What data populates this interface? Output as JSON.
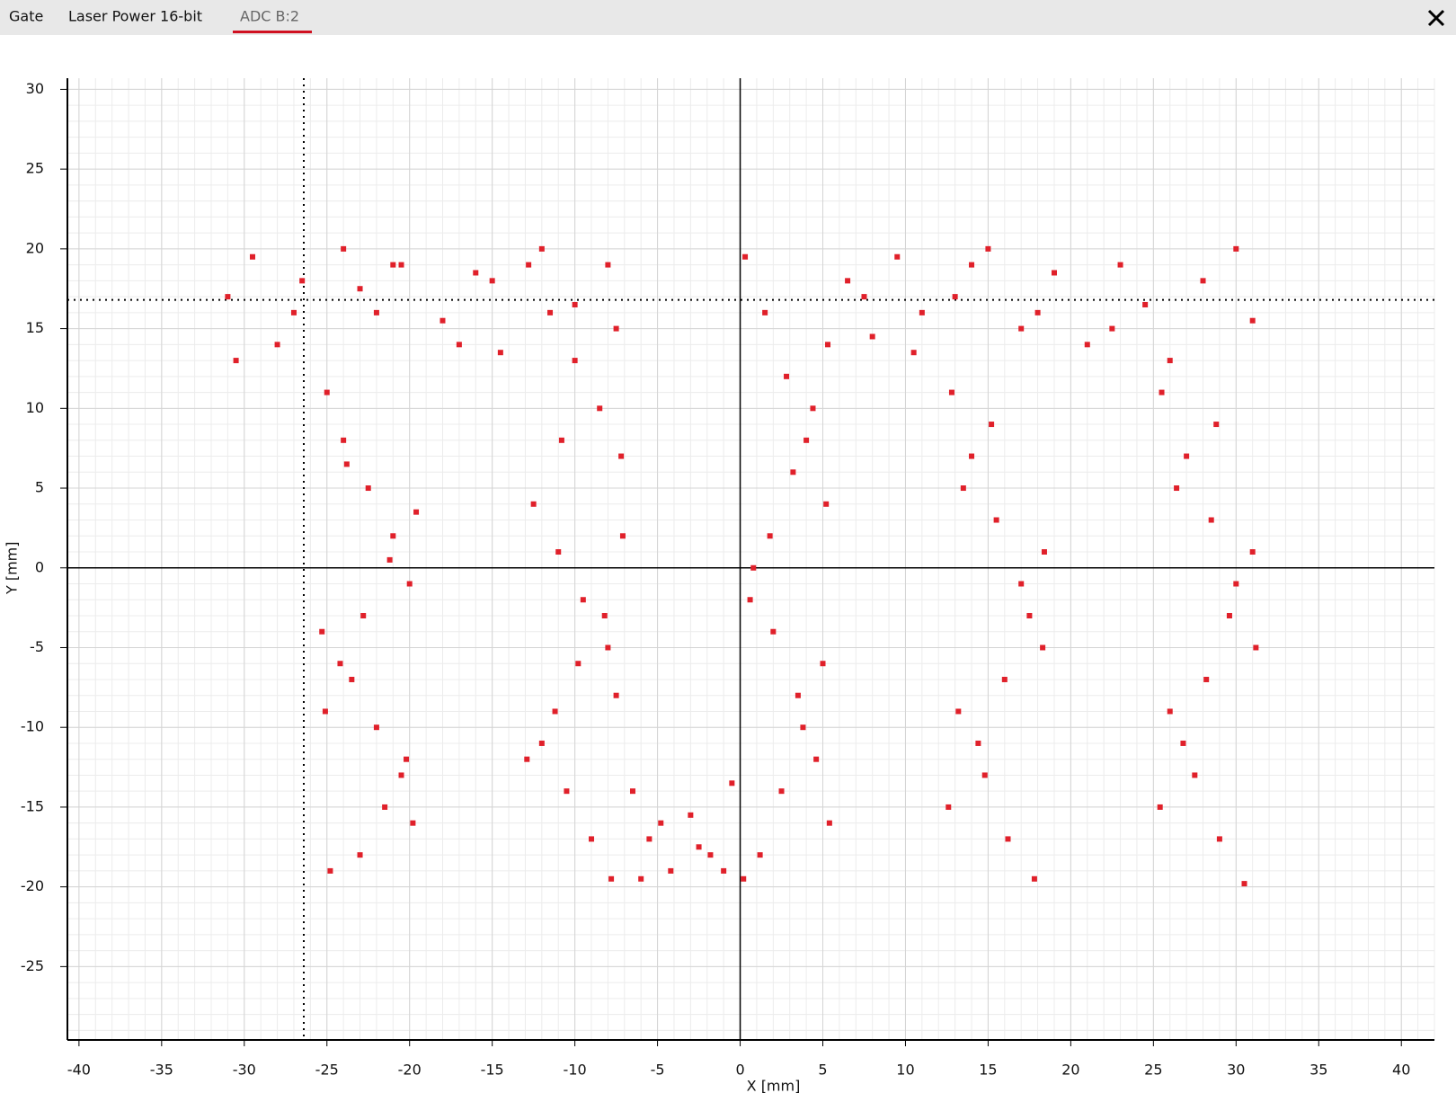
{
  "tabs": [
    "Gate",
    "Laser Power 16-bit",
    "ADC B:2"
  ],
  "active_tab": 2,
  "chart_data": {
    "type": "scatter",
    "xlabel": "X [mm]",
    "ylabel": "Y [mm]",
    "xlim": [
      -40.7,
      42
    ],
    "ylim": [
      -29.6,
      30.7
    ],
    "xticks": [
      -40,
      -35,
      -30,
      -25,
      -20,
      -15,
      -10,
      -5,
      0,
      5,
      10,
      15,
      20,
      25,
      30,
      35,
      40
    ],
    "yticks": [
      -25,
      -20,
      -15,
      -10,
      -5,
      0,
      5,
      10,
      15,
      20,
      25,
      30
    ],
    "grid": true,
    "minor_grid": true,
    "cursor": {
      "x": -26.4,
      "y": 16.8
    },
    "series": [
      {
        "color": "#e0202a",
        "x": [
          -31,
          -29.5,
          -28,
          -26.5,
          -24,
          -22,
          -20.5,
          -18,
          -16,
          -14.5,
          -30.5,
          -27,
          -23,
          -21,
          -17,
          -15,
          -12,
          -10,
          -8,
          -7.5,
          -25,
          -24,
          -22.5,
          -21,
          -20,
          -25.3,
          -23.5,
          -22,
          -20.5,
          -19.8,
          -24.8,
          -23,
          -21.5,
          -20.2,
          -25.1,
          -24.2,
          -22.8,
          -21.2,
          -19.6,
          -23.8,
          -12.8,
          -11.5,
          -10,
          -8.5,
          -7.2,
          -12.5,
          -11,
          -9.5,
          -8,
          -7.5,
          -12,
          -10.5,
          -9,
          -7.8,
          -12.9,
          -11.2,
          -9.8,
          -8.2,
          -7.1,
          -10.8,
          -6.5,
          -5.5,
          -4.2,
          -3,
          -1.8,
          -0.5,
          -6,
          -4.8,
          -2.5,
          -1,
          0.3,
          1.5,
          2.8,
          4,
          5.2,
          0.8,
          2,
          3.5,
          4.6,
          5.4,
          0.2,
          1.2,
          2.5,
          3.8,
          5,
          0.6,
          1.8,
          3.2,
          4.4,
          5.3,
          6.5,
          8,
          9.5,
          11,
          13,
          15,
          17,
          19,
          21,
          23,
          24.5,
          26,
          28,
          30,
          31,
          7.5,
          10.5,
          14,
          18,
          22.5,
          12.8,
          14,
          15.5,
          17,
          18.3,
          13.2,
          14.8,
          16.2,
          17.8,
          12.6,
          14.4,
          16,
          17.5,
          18.4,
          13.5,
          15.2,
          25.5,
          27,
          28.5,
          30,
          31.2,
          26,
          27.5,
          29,
          30.5,
          25.4,
          26.8,
          28.2,
          29.6,
          31,
          26.4,
          28.8
        ],
        "values": [
          17,
          19.5,
          14,
          18,
          20,
          16,
          19,
          15.5,
          18.5,
          13.5,
          13,
          16,
          17.5,
          19,
          14,
          18,
          20,
          16.5,
          19,
          15,
          11,
          8,
          5,
          2,
          -1,
          -4,
          -7,
          -10,
          -13,
          -16,
          -19,
          -18,
          -15,
          -12,
          -9,
          -6,
          -3,
          0.5,
          3.5,
          6.5,
          19,
          16,
          13,
          10,
          7,
          4,
          1,
          -2,
          -5,
          -8,
          -11,
          -14,
          -17,
          -19.5,
          -12,
          -9,
          -6,
          -3,
          2,
          8,
          -14,
          -17,
          -19,
          -15.5,
          -18,
          -13.5,
          -19.5,
          -16,
          -17.5,
          -19,
          19.5,
          16,
          12,
          8,
          4,
          0,
          -4,
          -8,
          -12,
          -16,
          -19.5,
          -18,
          -14,
          -10,
          -6,
          -2,
          2,
          6,
          10,
          14,
          18,
          14.5,
          19.5,
          16,
          17,
          20,
          15,
          18.5,
          14,
          19,
          16.5,
          13,
          18,
          20,
          15.5,
          17,
          13.5,
          19,
          16,
          15,
          11,
          7,
          3,
          -1,
          -5,
          -9,
          -13,
          -17,
          -19.5,
          -15,
          -11,
          -7,
          -3,
          1,
          5,
          9,
          11,
          7,
          3,
          -1,
          -5,
          -9,
          -13,
          -17,
          -19.8,
          -15,
          -11,
          -7,
          -3,
          1,
          5,
          9
        ]
      }
    ]
  }
}
